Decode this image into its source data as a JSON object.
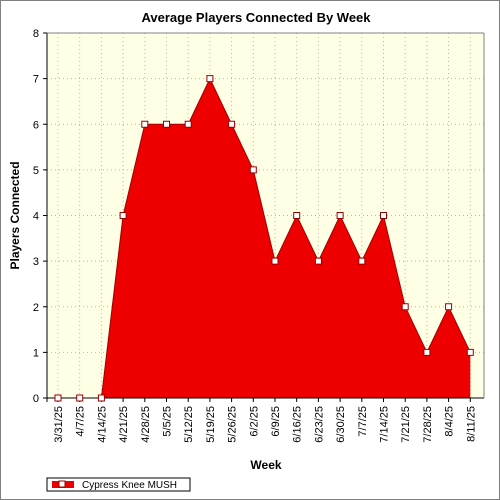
{
  "chart_data": {
    "type": "area",
    "title": "Average Players Connected By Week",
    "xlabel": "Week",
    "ylabel": "Players Connected",
    "ylim": [
      0,
      8
    ],
    "yticks": [
      0,
      1,
      2,
      3,
      4,
      5,
      6,
      7,
      8
    ],
    "grid": true,
    "legend_position": "bottom-left",
    "categories": [
      "3/31/25",
      "4/7/25",
      "4/14/25",
      "4/21/25",
      "4/28/25",
      "5/5/25",
      "5/12/25",
      "5/19/25",
      "5/26/25",
      "6/2/25",
      "6/9/25",
      "6/16/25",
      "6/23/25",
      "6/30/25",
      "7/7/25",
      "7/14/25",
      "7/21/25",
      "7/28/25",
      "8/4/25",
      "8/11/25"
    ],
    "series": [
      {
        "name": "Cypress Knee MUSH",
        "color": "#ee0000",
        "values": [
          0,
          0,
          0,
          4,
          6,
          6,
          6,
          7,
          6,
          5,
          3,
          4,
          3,
          4,
          3,
          4,
          2,
          1,
          2,
          1
        ]
      }
    ],
    "plot_background": "#ffffe6",
    "colors": {
      "grid": "#b8b8a0",
      "marker_fill": "#ffffff",
      "marker_stroke": "#990000"
    }
  }
}
